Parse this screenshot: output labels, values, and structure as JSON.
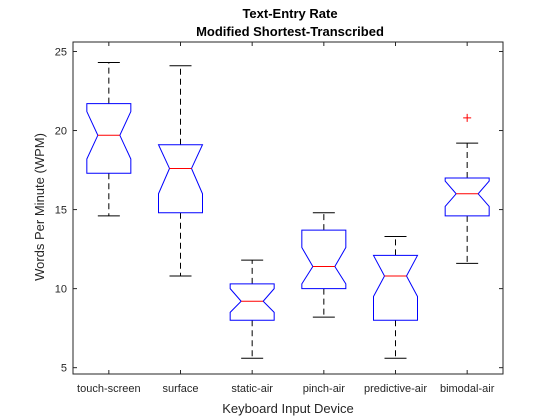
{
  "chart_data": {
    "type": "boxplot",
    "title": "Text-Entry Rate",
    "subtitle": "Modified Shortest-Transcribed",
    "xlabel": "Keyboard Input Device",
    "ylabel": "Words Per Minute (WPM)",
    "ylim": [
      4.6,
      25.6
    ],
    "yticks": [
      5,
      10,
      15,
      20,
      25
    ],
    "notched": true,
    "grid": false,
    "legend": "none",
    "colors": {
      "box": "#0000ff",
      "median": "#ff0000",
      "whisker": "#000000",
      "outlier": "#ff0000",
      "axis": "#262626"
    },
    "categories": [
      "touch-screen",
      "surface",
      "static-air",
      "pinch-air",
      "predictive-air",
      "bimodal-air"
    ],
    "boxes": [
      {
        "name": "touch-screen",
        "whisker_low": 14.6,
        "q1": 17.3,
        "median": 19.7,
        "q3": 21.7,
        "whisker_high": 24.3,
        "notch_low": 18.2,
        "notch_high": 21.2,
        "outliers": []
      },
      {
        "name": "surface",
        "whisker_low": 10.8,
        "q1": 14.8,
        "median": 17.6,
        "q3": 19.1,
        "whisker_high": 24.1,
        "notch_low": 16.0,
        "notch_high": 19.1,
        "outliers": []
      },
      {
        "name": "static-air",
        "whisker_low": 5.6,
        "q1": 8.0,
        "median": 9.2,
        "q3": 10.3,
        "whisker_high": 11.8,
        "notch_low": 8.5,
        "notch_high": 10.0,
        "outliers": []
      },
      {
        "name": "pinch-air",
        "whisker_low": 8.2,
        "q1": 10.0,
        "median": 11.4,
        "q3": 13.7,
        "whisker_high": 14.8,
        "notch_low": 10.3,
        "notch_high": 12.6,
        "outliers": []
      },
      {
        "name": "predictive-air",
        "whisker_low": 5.6,
        "q1": 8.0,
        "median": 10.8,
        "q3": 12.1,
        "whisker_high": 13.3,
        "notch_low": 9.5,
        "notch_high": 12.1,
        "outliers": []
      },
      {
        "name": "bimodal-air",
        "whisker_low": 11.6,
        "q1": 14.6,
        "median": 16.0,
        "q3": 17.0,
        "whisker_high": 19.2,
        "notch_low": 15.2,
        "notch_high": 16.8,
        "outliers": [
          20.8
        ]
      }
    ]
  }
}
